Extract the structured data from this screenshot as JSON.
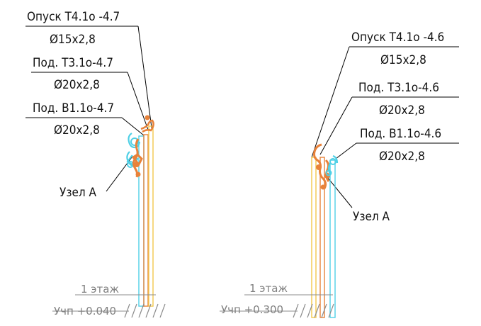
{
  "left": {
    "label_t4": "Опуск Т4.1о -4.7",
    "dim_t4": "Ø15х2,8",
    "label_t3": "Под. Т3.1о-4.7",
    "dim_t3": "Ø20х2,8",
    "label_v1": "Под. В1.1о-4.7",
    "dim_v1": "Ø20х2,8",
    "node": "Узел А",
    "floor": "1 этаж",
    "elevation": "Учп +0.040"
  },
  "right": {
    "label_t4": "Опуск Т4.1о -4.6",
    "dim_t4": "Ø15х2,8",
    "label_t3": "Под. Т3.1о-4.6",
    "dim_t3": "Ø20х2,8",
    "label_v1": "Под. В1.1о-4.6",
    "dim_v1": "Ø20х2,8",
    "node": "Узел А",
    "floor": "1 этаж",
    "elevation": "Учп +0.300"
  },
  "colors": {
    "t4_pipe": "#f2c84b",
    "t3_pipe": "#e8823a",
    "v1_pipe": "#4fd0e6",
    "leader": "#000000",
    "level": "#8c8c8c"
  }
}
